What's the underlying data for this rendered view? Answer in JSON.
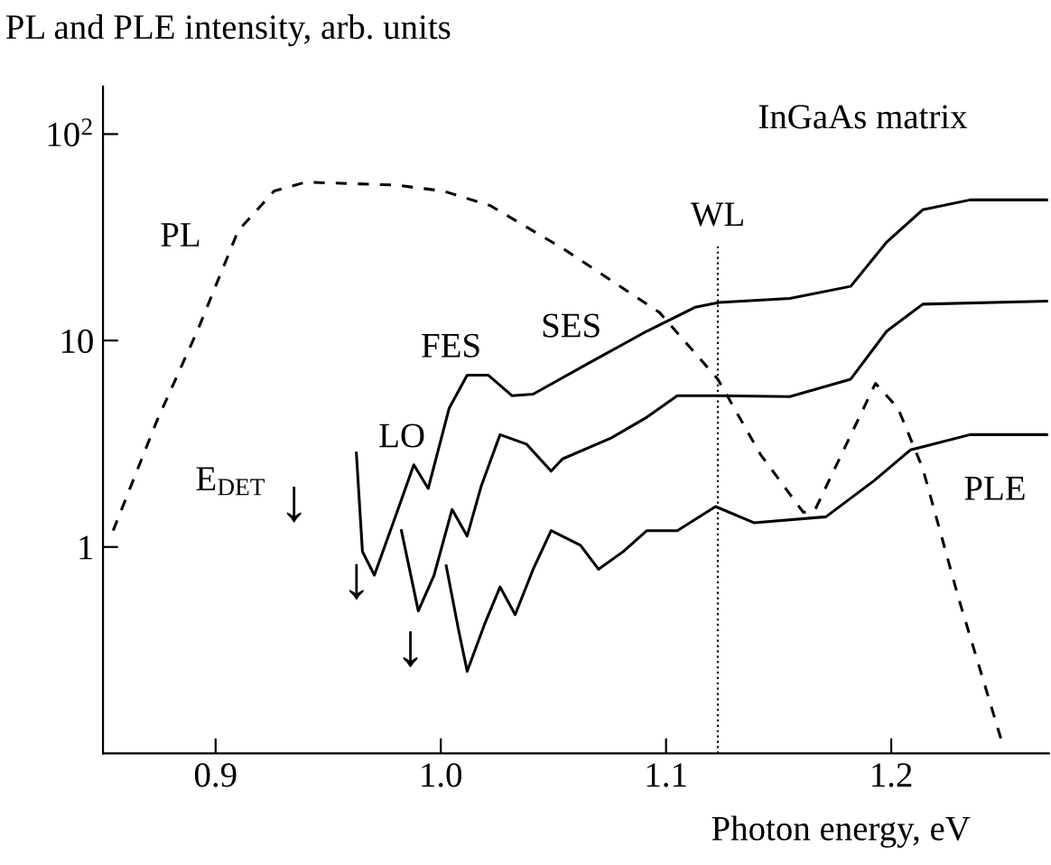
{
  "chart_data": {
    "type": "line",
    "ylabel": "PL and PLE intensity, arb. units",
    "xlabel": "Photon energy, eV",
    "log": "y",
    "xlim": [
      0.85,
      1.27
    ],
    "ylim": [
      0.1,
      170
    ],
    "xticks": [
      0.9,
      {
        "value": 1.0,
        "label": "1.0"
      },
      1.1,
      1.2
    ],
    "yticks": [
      1,
      10,
      {
        "value": 100,
        "label": "10$^{2}$"
      }
    ],
    "grid": false,
    "legend": false,
    "marker": "none",
    "series": [
      {
        "color": "#000000",
        "line_style": "dashed",
        "x": [
          0.8545,
          0.874,
          0.892,
          0.91,
          0.926,
          0.94,
          0.98,
          1.001,
          1.022,
          1.054,
          1.084,
          1.097,
          1.123,
          1.142,
          1.161,
          1.166,
          1.193,
          1.203,
          1.214,
          1.23,
          1.249
        ],
        "values": [
          1.2,
          4.1,
          11.2,
          34,
          53,
          58.5,
          56.6,
          53,
          45,
          28,
          17,
          13.7,
          6.5,
          2.8,
          1.47,
          1.5,
          6.2,
          4.7,
          2.4,
          0.56,
          0.115
        ]
      },
      {
        "color": "#000000",
        "line_style": "solid",
        "x": [
          0.9625,
          0.9652,
          0.9705,
          0.98,
          0.988,
          0.9944,
          1.0037,
          1.0117,
          1.021,
          1.0317,
          1.041,
          1.065,
          1.0915,
          1.113,
          1.1235,
          1.155,
          1.182,
          1.198,
          1.214,
          1.235,
          1.269
        ],
        "values": [
          2.85,
          0.95,
          0.73,
          1.42,
          2.5,
          1.92,
          4.7,
          6.8,
          6.8,
          5.4,
          5.5,
          7.7,
          11.1,
          14.5,
          15.3,
          16,
          18.3,
          30,
          43,
          48,
          48
        ]
      },
      {
        "color": "#000000",
        "line_style": "solid",
        "x": [
          0.9825,
          0.99,
          0.997,
          1.005,
          1.0117,
          1.018,
          1.0263,
          1.038,
          1.049,
          1.054,
          1.0756,
          1.0915,
          1.105,
          1.1235,
          1.155,
          1.182,
          1.198,
          1.214,
          1.269
        ],
        "values": [
          1.2,
          0.49,
          0.73,
          1.52,
          1.13,
          1.98,
          3.5,
          3.15,
          2.33,
          2.67,
          3.37,
          4.25,
          5.4,
          5.4,
          5.35,
          6.5,
          11.1,
          15,
          15.5
        ]
      },
      {
        "color": "#000000",
        "line_style": "solid",
        "x": [
          1.0024,
          1.0078,
          1.0117,
          1.0197,
          1.0263,
          1.033,
          1.041,
          1.049,
          1.062,
          1.07,
          1.081,
          1.0915,
          1.105,
          1.122,
          1.139,
          1.171,
          1.1925,
          1.2085,
          1.235,
          1.269
        ],
        "values": [
          0.81,
          0.4,
          0.25,
          0.43,
          0.64,
          0.47,
          0.78,
          1.2,
          1.02,
          0.78,
          0.95,
          1.2,
          1.2,
          1.57,
          1.31,
          1.4,
          2.1,
          2.95,
          3.5,
          3.5
        ]
      }
    ],
    "ref_lines": [
      {
        "axis": "x",
        "value": 1.123,
        "label": "WL",
        "line_style": "dotted",
        "color": "#000000"
      }
    ],
    "annotations": [
      "InGaAs matrix",
      "PL",
      "FES",
      "SES",
      "LO",
      "PLE",
      "E$_{DET}$",
      "↓",
      "↓",
      "↓"
    ]
  }
}
